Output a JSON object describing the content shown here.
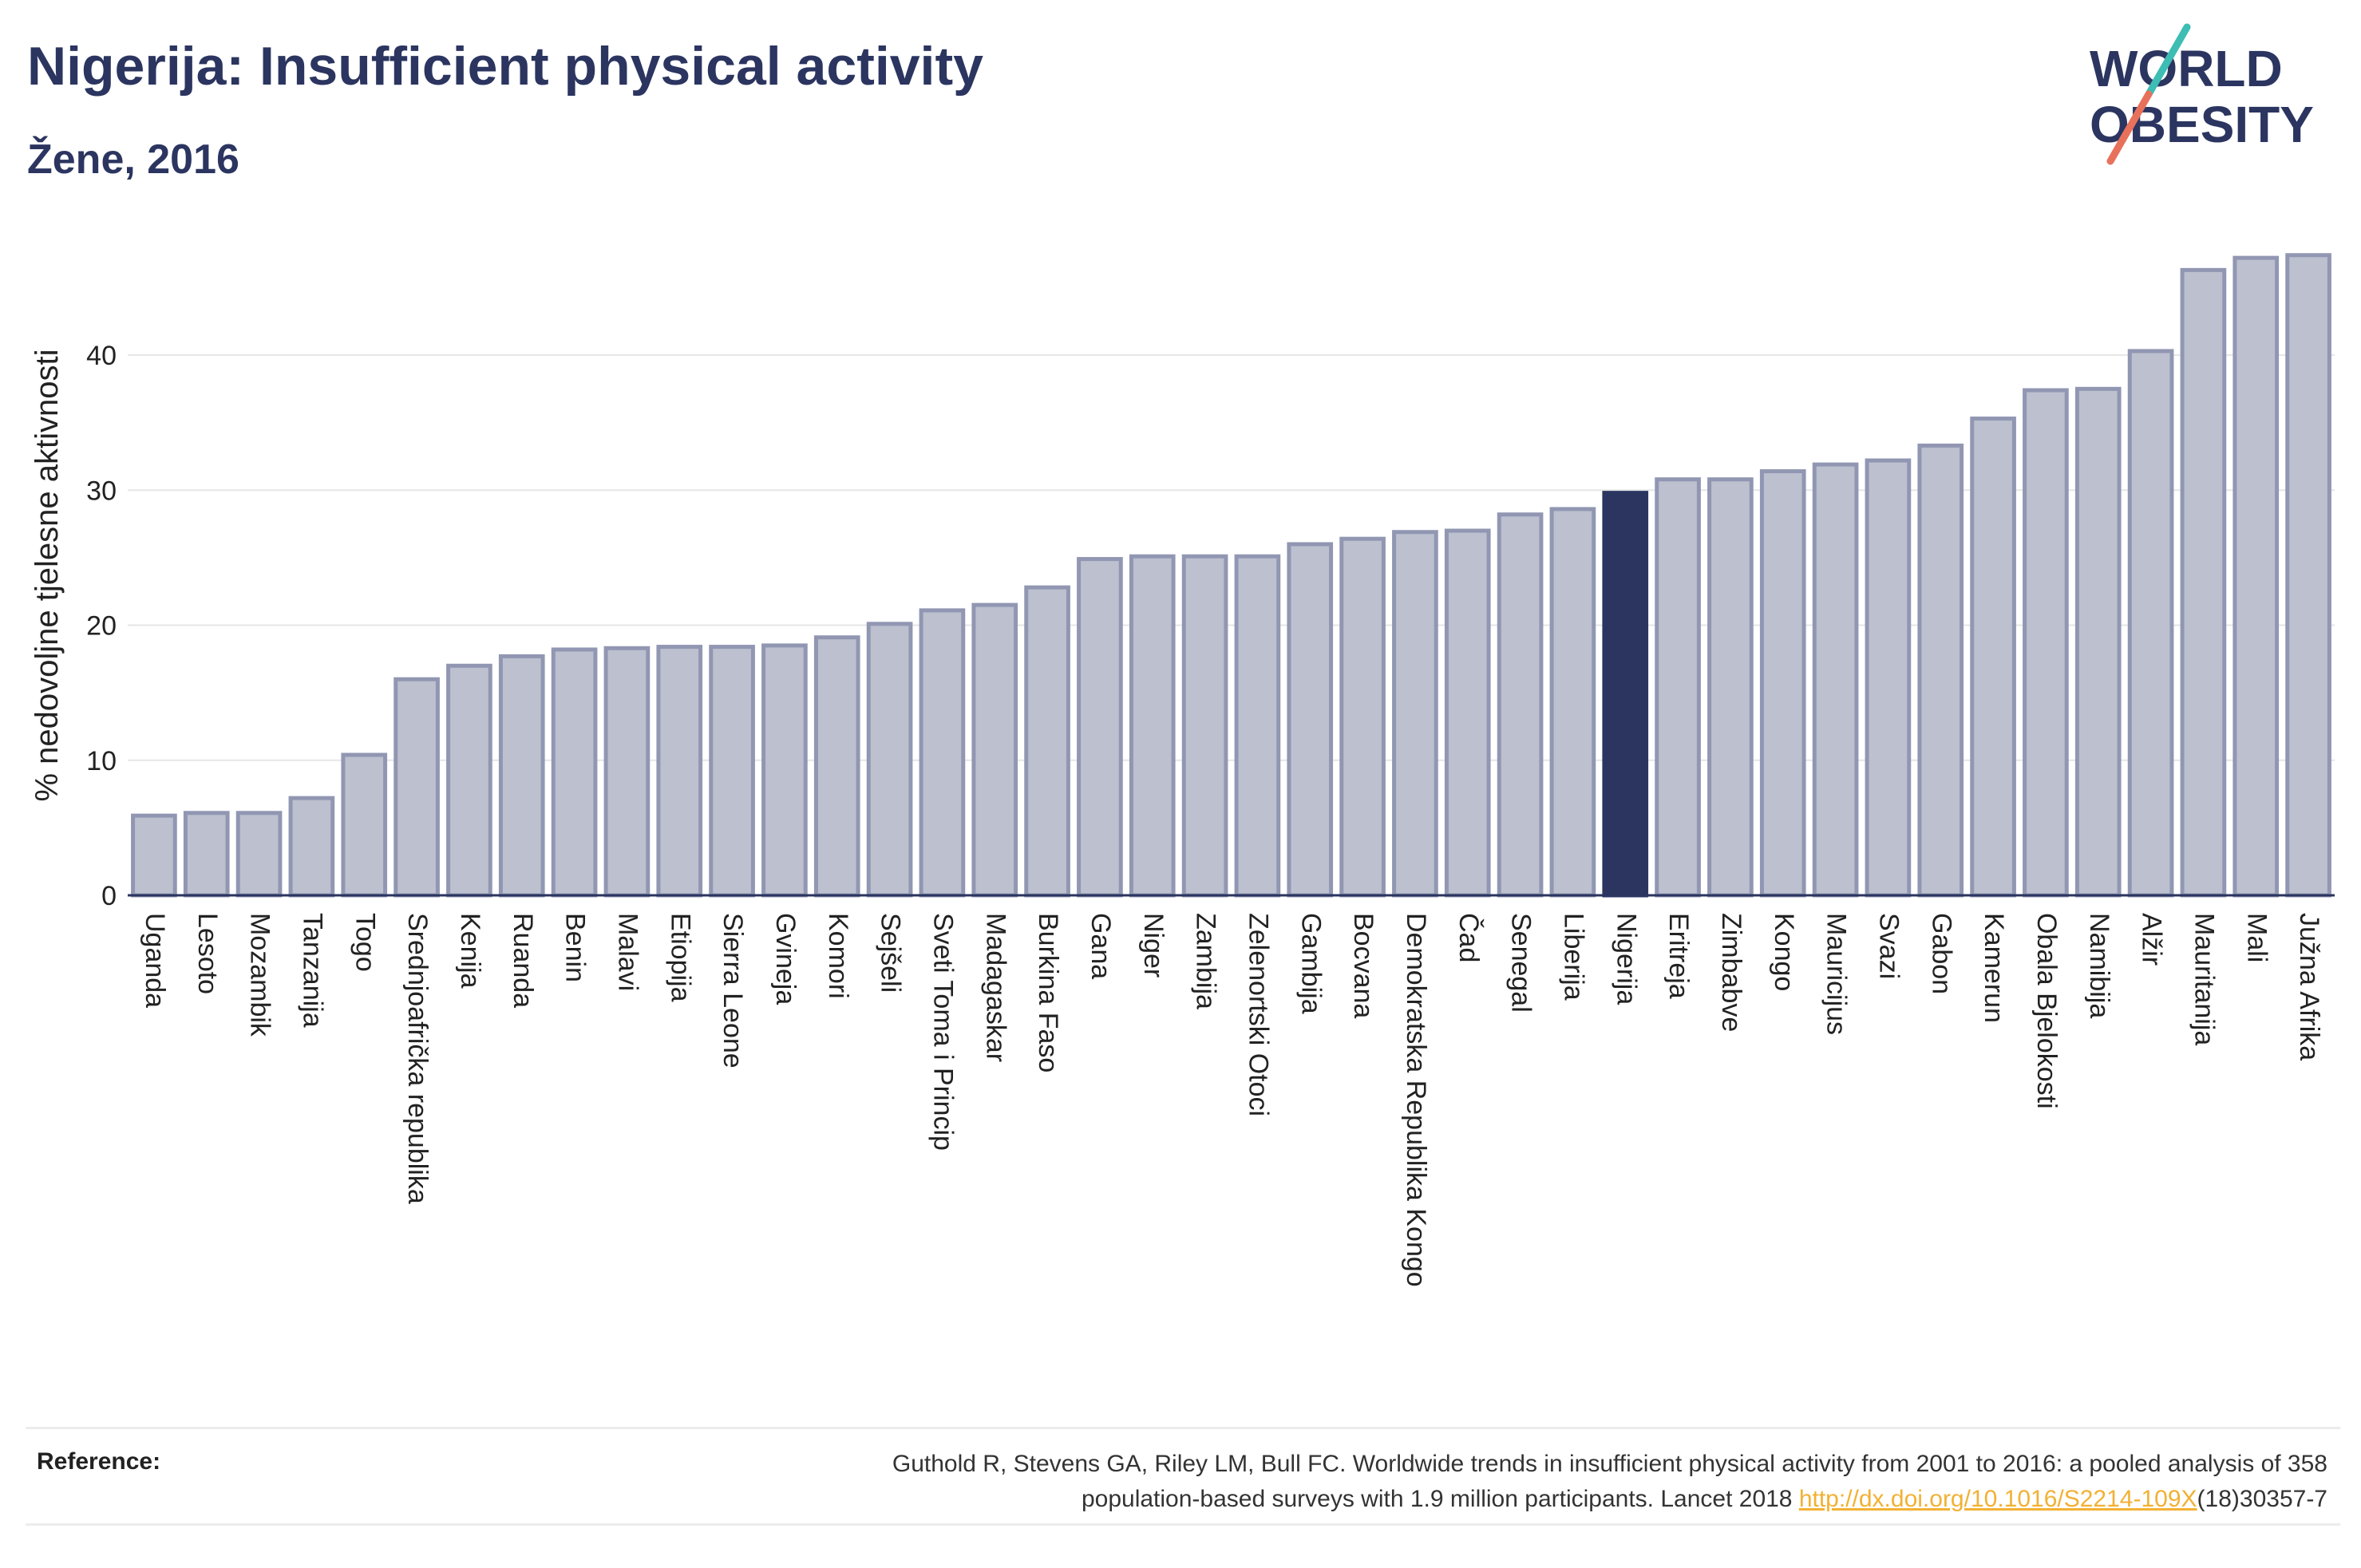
{
  "header": {
    "title": "Nigerija: Insufficient physical activity",
    "subtitle": "Žene, 2016"
  },
  "logo": {
    "line1": "WORLD",
    "line2": "OBESITY",
    "accent_colors": [
      "#3dbdb3",
      "#e8715c"
    ],
    "text_color": "#2b3560"
  },
  "colors": {
    "bar_default": "#bcc0cf",
    "bar_border": "#9197b2",
    "bar_highlight": "#2b3560",
    "grid": "#e6e6e6",
    "axis": "#2b3560"
  },
  "chart_data": {
    "type": "bar",
    "title": "",
    "xlabel": "",
    "ylabel": "% nedovoljne tjelesne aktivnosti",
    "ylim": [
      0,
      48
    ],
    "yticks": [
      0,
      10,
      20,
      30,
      40
    ],
    "grid": true,
    "highlight": "Nigerija",
    "categories": [
      "Uganda",
      "Lesoto",
      "Mozambik",
      "Tanzanija",
      "Togo",
      "Srednjoafrička republika",
      "Kenija",
      "Ruanda",
      "Benin",
      "Malavi",
      "Etiopija",
      "Sierra Leone",
      "Gvineja",
      "Komori",
      "Sejšeli",
      "Sveti Toma i Princip",
      "Madagaskar",
      "Burkina Faso",
      "Gana",
      "Niger",
      "Zambija",
      "Zelenortski Otoci",
      "Gambija",
      "Bocvana",
      "Demokratska Republika Kongo",
      "Čad",
      "Senegal",
      "Liberija",
      "Nigerija",
      "Eritreja",
      "Zimbabve",
      "Kongo",
      "Mauricijus",
      "Svazi",
      "Gabon",
      "Kamerun",
      "Obala Bjelokosti",
      "Namibija",
      "Alžir",
      "Mauritanija",
      "Mali",
      "Južna Afrika"
    ],
    "values": [
      5.9,
      6.1,
      6.1,
      7.2,
      10.4,
      16.0,
      17.0,
      17.7,
      18.2,
      18.3,
      18.4,
      18.4,
      18.5,
      19.1,
      20.1,
      21.1,
      21.5,
      22.8,
      24.9,
      25.1,
      25.1,
      25.1,
      26.0,
      26.4,
      26.9,
      27.0,
      28.2,
      28.6,
      29.8,
      30.8,
      30.8,
      31.4,
      31.9,
      32.2,
      33.3,
      35.3,
      37.4,
      37.5,
      40.3,
      46.3,
      47.2,
      47.4
    ]
  },
  "reference": {
    "label": "Reference:",
    "line1": "Guthold R, Stevens GA, Riley LM, Bull FC. Worldwide trends in insufficient physical activity from 2001 to 2016: a pooled analysis of 358",
    "line2_prefix": "population-based surveys with 1.9 million participants. Lancet 2018 ",
    "link": "http://dx.doi.org/10.1016/S2214-109X",
    "line2_suffix": "(18)30357-7"
  }
}
